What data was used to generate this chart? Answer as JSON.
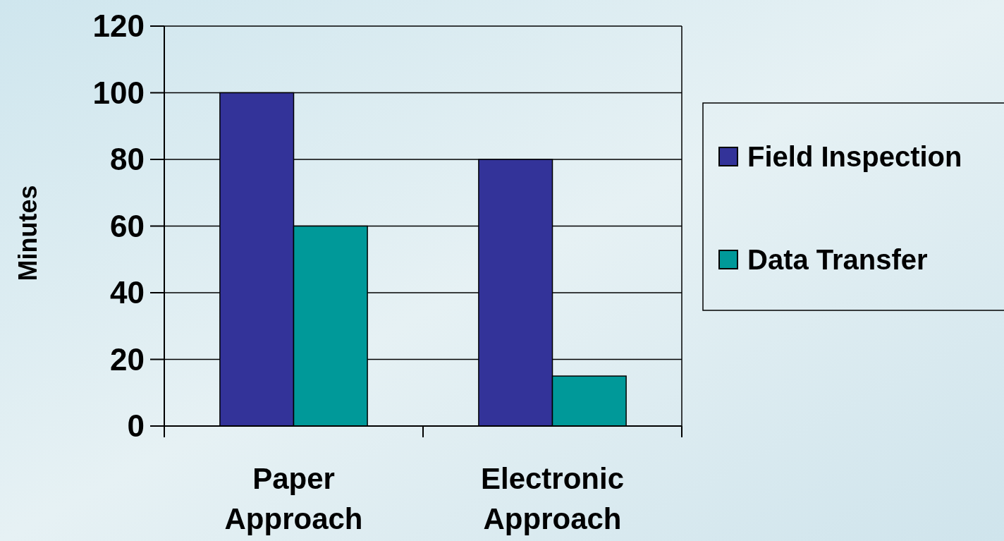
{
  "chart_data": {
    "type": "bar",
    "ylabel": "Minutes",
    "categories": [
      "Paper Approach",
      "Electronic Approach"
    ],
    "series": [
      {
        "name": "Field Inspection",
        "color": "#333399",
        "values": [
          100,
          80
        ]
      },
      {
        "name": "Data Transfer",
        "color": "#009999",
        "values": [
          60,
          15
        ]
      }
    ],
    "ylim": [
      0,
      120
    ],
    "yticks": [
      0,
      20,
      40,
      60,
      80,
      100,
      120
    ],
    "grid": "y",
    "legend": "right"
  }
}
